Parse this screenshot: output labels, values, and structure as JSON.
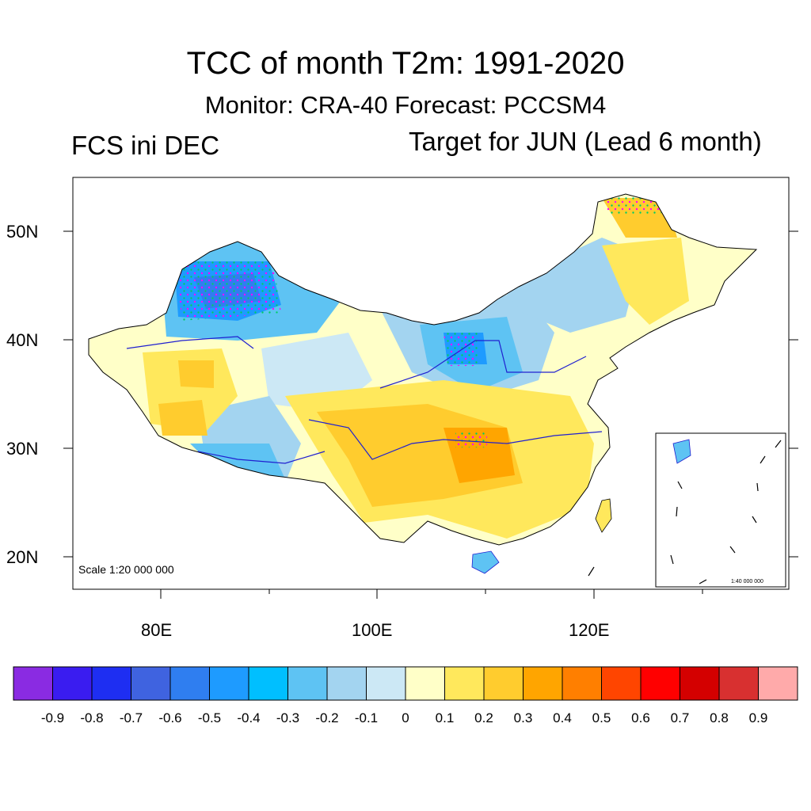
{
  "title": "TCC of month T2m: 1991-2020",
  "subtitle": "Monitor: CRA-40   Forecast: PCCSM4",
  "left_label": "FCS ini DEC",
  "right_label": "Target for JUN (Lead 6 month)",
  "map": {
    "lat_ticks": [
      "50N",
      "40N",
      "30N",
      "20N"
    ],
    "lon_ticks": [
      "80E",
      "100E",
      "120E"
    ],
    "scale_text": "Scale 1:20 000 000",
    "inset_scale_text": "1:40 000 000"
  },
  "colorbar": {
    "labels": [
      "-0.9",
      "-0.8",
      "-0.7",
      "-0.6",
      "-0.5",
      "-0.4",
      "-0.3",
      "-0.2",
      "-0.1",
      "0",
      "0.1",
      "0.2",
      "0.3",
      "0.4",
      "0.5",
      "0.6",
      "0.7",
      "0.8",
      "0.9"
    ],
    "colors": [
      "#8a2be2",
      "#3a1cf0",
      "#1e2ef2",
      "#3f63e0",
      "#2f7ef0",
      "#1e9bff",
      "#00bfff",
      "#5ec3f3",
      "#a3d4f0",
      "#cce8f5",
      "#ffffc8",
      "#ffe85c",
      "#ffcc2e",
      "#ffa500",
      "#ff7f00",
      "#ff4500",
      "#ff0000",
      "#d40000",
      "#d83030",
      "#ffaaaa"
    ]
  }
}
